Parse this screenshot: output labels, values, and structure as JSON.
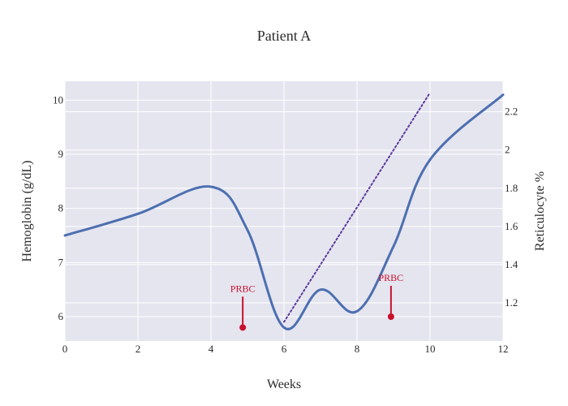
{
  "chart_data": {
    "type": "line",
    "title": "Patient A",
    "xlabel": "Weeks",
    "ylabel": "Hemoglobin (g/dL)",
    "y2label": "Reticulocyte %",
    "xlim": [
      0,
      12
    ],
    "ylim": [
      5.55,
      10.35
    ],
    "y2lim": [
      1.0,
      2.36
    ],
    "x_ticks": [
      0,
      2,
      4,
      6,
      8,
      10,
      12
    ],
    "y_ticks": [
      6,
      7,
      8,
      9,
      10
    ],
    "y2_ticks": [
      1.2,
      1.4,
      1.6,
      1.8,
      2.0,
      2.2
    ],
    "y2_tick_labels": [
      "1.2",
      "1.4",
      "1.6",
      "1.8",
      "2",
      "2.2"
    ],
    "grid": true,
    "series": [
      {
        "axis": "y",
        "color": "#4c6fb0",
        "style": "solid",
        "x": [
          0,
          2,
          4,
          5,
          6,
          7,
          8,
          9,
          10,
          12
        ],
        "values": [
          7.5,
          7.9,
          8.4,
          7.6,
          5.8,
          6.5,
          6.1,
          7.3,
          8.9,
          10.1
        ]
      },
      {
        "axis": "y2",
        "color": "#5b3a9e",
        "style": "dotted",
        "x": [
          6,
          10
        ],
        "values": [
          1.1,
          2.3
        ]
      }
    ],
    "annotations": [
      {
        "x": 4.87,
        "y": 5.8,
        "text": "PRBC",
        "color": "#c8102e"
      },
      {
        "x": 8.93,
        "y": 6.0,
        "text": "PRBC",
        "color": "#c8102e"
      }
    ]
  }
}
